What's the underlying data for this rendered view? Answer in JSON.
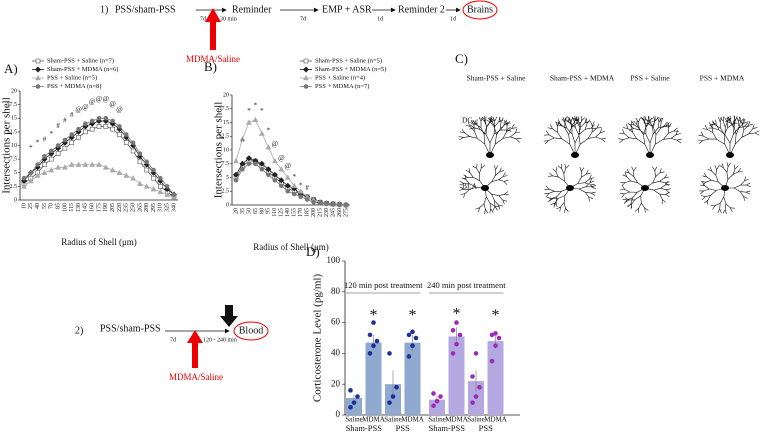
{
  "panels": {
    "a": "A)",
    "b": "B)",
    "c": "C)",
    "d": "D)"
  },
  "protocol1": {
    "number": "1)",
    "steps": [
      "PSS/sham-PSS",
      "Reminder",
      "EMP + ASR",
      "Reminder 2",
      "Brains"
    ],
    "intervals": [
      "7d",
      "30 min",
      "7d",
      "1d",
      "1d"
    ],
    "treatment": "MDMA/Saline"
  },
  "protocol2": {
    "number": "2)",
    "steps": [
      "PSS/sham-PSS",
      "Blood"
    ],
    "intervals": [
      "7d",
      "120 - 240 min"
    ],
    "treatment": "MDMA/Saline"
  },
  "panel_c": {
    "groups": [
      "Sham-PSS + Saline",
      "Sham-PSS + MDMA",
      "PSS + Saline",
      "PSS + MDMA"
    ],
    "regions": [
      "DG",
      "BLA"
    ]
  },
  "chart_data": [
    {
      "type": "line",
      "xlabel": "Radius of Shell (μm)",
      "ylabel": "Intersections per shell",
      "categories": [
        10,
        25,
        40,
        55,
        70,
        85,
        100,
        115,
        130,
        145,
        160,
        175,
        190,
        205,
        220,
        235,
        250,
        265,
        280,
        295,
        310,
        325,
        340
      ],
      "ylim": [
        0,
        20
      ],
      "yticks": [
        0,
        2.5,
        5,
        7.5,
        10,
        12.5,
        15,
        17.5,
        20
      ],
      "series": [
        {
          "name": "Sham-PSS + Saline (n=7)",
          "color": "#555555",
          "marker": "open-square",
          "values": [
            3,
            4,
            5,
            6.5,
            7.5,
            8.5,
            9.5,
            10.5,
            11.5,
            12.5,
            13,
            13.5,
            13.5,
            13,
            12,
            10.5,
            9,
            7,
            5.5,
            4,
            2.5,
            1.5,
            0.5
          ]
        },
        {
          "name": "Sham-PSS + MDMA (n=6)",
          "color": "#222222",
          "marker": "diamond",
          "values": [
            3.5,
            5,
            6,
            7.5,
            8.5,
            9.5,
            10.5,
            11.5,
            12.5,
            13.5,
            14,
            14.5,
            14.5,
            14,
            13,
            11.5,
            10,
            8,
            6.5,
            5,
            3.5,
            2,
            1
          ]
        },
        {
          "name": "PSS + Saline (n=5)",
          "color": "#aaaaaa",
          "marker": "triangle",
          "values": [
            2.5,
            3.5,
            4.5,
            5,
            5.5,
            6,
            6,
            6.5,
            6.5,
            6.5,
            6.5,
            6.5,
            6,
            5.5,
            5,
            4.5,
            4,
            3,
            2.5,
            2,
            1.5,
            1,
            0.5
          ]
        },
        {
          "name": "PSS + MDMA (n=8)",
          "color": "#777777",
          "marker": "circle",
          "values": [
            4,
            5,
            6.5,
            8,
            9,
            10,
            11,
            12,
            13,
            14,
            14.5,
            15,
            15,
            14.5,
            13.5,
            12,
            10.5,
            8.5,
            7,
            5.5,
            4,
            2.5,
            1
          ]
        }
      ],
      "annotations": [
        {
          "text": "*",
          "x": 25,
          "y": 9.5
        },
        {
          "text": "*",
          "x": 40,
          "y": 10.5
        },
        {
          "text": "#",
          "x": 55,
          "y": 11
        },
        {
          "text": "*",
          "x": 70,
          "y": 12
        },
        {
          "text": "#",
          "x": 85,
          "y": 13.5
        },
        {
          "text": "#",
          "x": 100,
          "y": 14.5
        },
        {
          "text": "#",
          "x": 115,
          "y": 15.5
        },
        {
          "text": "@",
          "x": 130,
          "y": 16.5
        },
        {
          "text": "@",
          "x": 145,
          "y": 17
        },
        {
          "text": "@",
          "x": 160,
          "y": 18
        },
        {
          "text": "@",
          "x": 175,
          "y": 18.5
        },
        {
          "text": "@",
          "x": 190,
          "y": 18.5
        },
        {
          "text": "@",
          "x": 205,
          "y": 17.5
        },
        {
          "text": "@",
          "x": 220,
          "y": 16.5
        }
      ]
    },
    {
      "type": "line",
      "xlabel": "Radius of Shell (μm)",
      "ylabel": "Intersections per shell",
      "categories": [
        20,
        35,
        50,
        65,
        80,
        95,
        110,
        125,
        140,
        155,
        170,
        185,
        200,
        215,
        230,
        245,
        260,
        275
      ],
      "ylim": [
        0,
        20
      ],
      "yticks": [
        0,
        2.5,
        5,
        7.5,
        10,
        12.5,
        15,
        17.5,
        20
      ],
      "series": [
        {
          "name": "Sham-PSS + Saline (n=5)",
          "color": "#555555",
          "marker": "open-square",
          "values": [
            5,
            7,
            8,
            8,
            7,
            6,
            5,
            4,
            3,
            2.5,
            2,
            1.5,
            1,
            0.5,
            0.3,
            0.2,
            0.1,
            0
          ]
        },
        {
          "name": "Sham-PSS + MDMA (n=5)",
          "color": "#222222",
          "marker": "diamond",
          "values": [
            5.5,
            7.5,
            8.5,
            8,
            7.5,
            6.5,
            5.5,
            4.5,
            3.5,
            3,
            2,
            1.5,
            1,
            0.5,
            0.3,
            0.2,
            0.1,
            0
          ]
        },
        {
          "name": "PSS + Saline (n=4)",
          "color": "#aaaaaa",
          "marker": "triangle",
          "values": [
            8,
            12,
            15,
            15.5,
            13,
            10.5,
            8,
            6.5,
            5,
            3.5,
            2.5,
            1.5,
            1,
            0.5,
            0.3,
            0.2,
            0.1,
            0
          ]
        },
        {
          "name": "PSS + MDMA (n=7)",
          "color": "#777777",
          "marker": "circle",
          "values": [
            4.5,
            6.5,
            7.5,
            7.5,
            6.5,
            5.5,
            4.5,
            3.5,
            2.5,
            2,
            1.5,
            1,
            0.5,
            0.3,
            0.2,
            0.1,
            0,
            0
          ]
        }
      ],
      "annotations": [
        {
          "text": "^",
          "x": 35,
          "y": 11.5
        },
        {
          "text": "*",
          "x": 50,
          "y": 17
        },
        {
          "text": "*",
          "x": 65,
          "y": 18
        },
        {
          "text": "*",
          "x": 80,
          "y": 17
        },
        {
          "text": "*",
          "x": 95,
          "y": 13.5
        },
        {
          "text": "@",
          "x": 110,
          "y": 11
        },
        {
          "text": "@",
          "x": 125,
          "y": 8.5
        },
        {
          "text": "@",
          "x": 140,
          "y": 7
        },
        {
          "text": "*",
          "x": 155,
          "y": 5
        },
        {
          "text": "*",
          "x": 170,
          "y": 3.5
        },
        {
          "text": "#",
          "x": 185,
          "y": 3
        }
      ]
    },
    {
      "type": "bar",
      "ylabel": "Corticosterone Level (pg/ml)",
      "categories": [
        "Saline",
        "MDMA",
        "Saline",
        "MDMA",
        "Saline",
        "MDMA",
        "Saline",
        "MDMA"
      ],
      "groups": [
        "Sham-PSS",
        "PSS",
        "Sham-PSS",
        "PSS"
      ],
      "timepoints": [
        "120 min post treatment",
        "240 min post treatment"
      ],
      "values": [
        11,
        47,
        20,
        47,
        10,
        51,
        22,
        48
      ],
      "errors": [
        2,
        5,
        9,
        5,
        2,
        6,
        7,
        5
      ],
      "colors": [
        "#8fa9cf",
        "#8fa9cf",
        "#8fa9cf",
        "#8fa9cf",
        "#b3a8e0",
        "#b3a8e0",
        "#b3a8e0",
        "#b3a8e0"
      ],
      "point_colors": [
        "#1f2f9a",
        "#1f2f9a",
        "#1f2f9a",
        "#1f2f9a",
        "#9b2bb8",
        "#9b2bb8",
        "#9b2bb8",
        "#9b2bb8"
      ],
      "points": [
        [
          5,
          8,
          12,
          16
        ],
        [
          40,
          45,
          48,
          52,
          60
        ],
        [
          8,
          12,
          18,
          40
        ],
        [
          38,
          45,
          50,
          52,
          54
        ],
        [
          6,
          9,
          12,
          14
        ],
        [
          40,
          46,
          52,
          55,
          60
        ],
        [
          8,
          12,
          18,
          25,
          40
        ],
        [
          35,
          45,
          50,
          52,
          53
        ]
      ],
      "ylim": [
        0,
        100
      ],
      "yticks": [
        0,
        20,
        40,
        60,
        80,
        100
      ],
      "annotations": [
        {
          "text": "*",
          "index": 1,
          "y": 66
        },
        {
          "text": "*",
          "index": 3,
          "y": 66
        },
        {
          "text": "*",
          "index": 5,
          "y": 67
        },
        {
          "text": "*",
          "index": 7,
          "y": 66
        }
      ]
    }
  ]
}
